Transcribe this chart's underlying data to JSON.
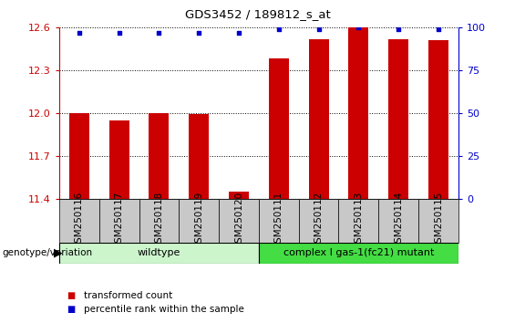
{
  "title": "GDS3452 / 189812_s_at",
  "samples": [
    "GSM250116",
    "GSM250117",
    "GSM250118",
    "GSM250119",
    "GSM250120",
    "GSM250111",
    "GSM250112",
    "GSM250113",
    "GSM250114",
    "GSM250115"
  ],
  "transformed_count": [
    12.0,
    11.95,
    12.0,
    11.99,
    11.45,
    12.38,
    12.52,
    12.6,
    12.52,
    12.51
  ],
  "percentile_rank": [
    97,
    97,
    97,
    97,
    97,
    99,
    99,
    100,
    99,
    99
  ],
  "ylim_left": [
    11.4,
    12.6
  ],
  "ylim_right": [
    0,
    100
  ],
  "yticks_left": [
    11.4,
    11.7,
    12.0,
    12.3,
    12.6
  ],
  "yticks_right": [
    0,
    25,
    50,
    75,
    100
  ],
  "groups": [
    {
      "label": "wildtype",
      "start": 0,
      "end": 5,
      "color": "#ccf5cc"
    },
    {
      "label": "complex I gas-1(fc21) mutant",
      "start": 5,
      "end": 10,
      "color": "#44dd44"
    }
  ],
  "bar_color": "#cc0000",
  "dot_color": "#0000cc",
  "bar_width": 0.5,
  "legend_items": [
    {
      "label": "transformed count",
      "color": "#cc0000"
    },
    {
      "label": "percentile rank within the sample",
      "color": "#0000cc"
    }
  ],
  "genotype_label": "genotype/variation",
  "tick_color_left": "#cc0000",
  "tick_color_right": "#0000cc",
  "grid_color": "#000000",
  "tick_bg_color": "#c8c8c8",
  "plot_bg_color": "#ffffff"
}
